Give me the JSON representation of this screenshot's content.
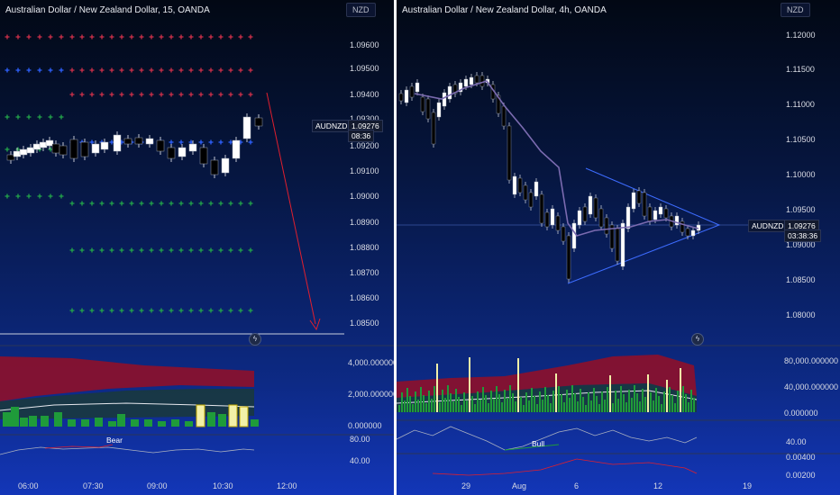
{
  "colors": {
    "bull_candle": "#ffffff",
    "bear_candle": "#000000",
    "plus_red": "#d0304a",
    "plus_blue": "#2f62ff",
    "plus_green": "#23a54a",
    "arrow": "#e01f2e",
    "volume_green": "#1f9b3a",
    "volume_yellow": "#f2f0a8",
    "band_red": "#8e0f2a",
    "triangle": "#3d6cff",
    "ma_line": "#7b6bb0"
  },
  "left_chart": {
    "title": "Australian Dollar / New Zealand Dollar, 15, OANDA",
    "currency": "NZD",
    "price_axis": [
      "1.09600",
      "1.09500",
      "1.09400",
      "1.09300",
      "1.09200",
      "1.09100",
      "1.09000",
      "1.08900",
      "1.08800",
      "1.08700",
      "1.08600",
      "1.08500"
    ],
    "symbol_tag": "AUDNZD",
    "last_price": "1.09276",
    "countdown": "08:36",
    "volume_axis": [
      "4,000.000000",
      "2,000.000000",
      "0.000000"
    ],
    "osc_axis": [
      "80.00",
      "40.00"
    ],
    "osc_label": "Bear",
    "time_axis": [
      "06:00",
      "07:30",
      "09:00",
      "10:30",
      "12:00"
    ],
    "bolt_icon": "lightning-icon"
  },
  "right_chart": {
    "title": "Australian Dollar / New Zealand Dollar, 4h, OANDA",
    "currency": "NZD",
    "price_axis": [
      "1.12000",
      "1.11500",
      "1.11000",
      "1.10500",
      "1.10000",
      "1.09500",
      "1.09000",
      "1.08500",
      "1.08000"
    ],
    "symbol_tag": "AUDNZD",
    "last_price": "1.09276",
    "countdown": "03:38:36",
    "volume_axis": [
      "80,000.000000",
      "40,000.000000",
      "0.000000"
    ],
    "osc_axis": [
      "40.00"
    ],
    "osc_label": "Bull",
    "osc2_axis": [
      "0.00400",
      "0.00200"
    ],
    "time_axis": [
      "29",
      "Aug",
      "6",
      "12",
      "19"
    ],
    "bolt_icon": "lightning-icon"
  }
}
